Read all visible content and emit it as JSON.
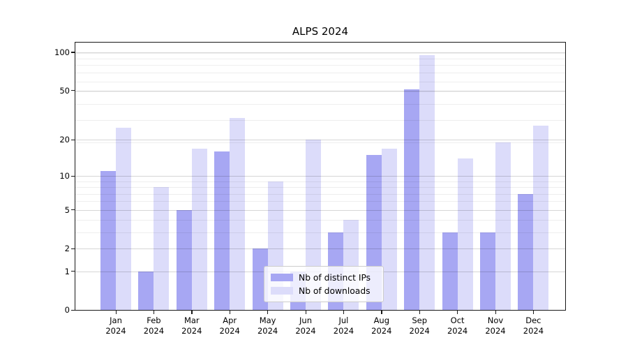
{
  "chart_data": {
    "type": "bar",
    "title": "ALPS 2024",
    "categories": [
      "Jan 2024",
      "Feb 2024",
      "Mar 2024",
      "Apr 2024",
      "May 2024",
      "Jun 2024",
      "Jul 2024",
      "Aug 2024",
      "Sep 2024",
      "Oct 2024",
      "Nov 2024",
      "Dec 2024"
    ],
    "series": [
      {
        "name": "Nb of distinct IPs",
        "color": "#a7a7f3",
        "values": [
          11,
          1,
          5,
          16,
          2,
          1,
          3,
          15,
          51,
          3,
          3,
          7
        ]
      },
      {
        "name": "Nb of downloads",
        "color": "#dcdcfa",
        "values": [
          25,
          8,
          17,
          30,
          9,
          20,
          4,
          17,
          95,
          14,
          19,
          26
        ]
      }
    ],
    "y_axis": {
      "scale": "log1p",
      "ticks": [
        0,
        1,
        2,
        5,
        10,
        20,
        50,
        100
      ],
      "minor_grid_u": [
        4,
        5,
        7,
        8,
        9,
        10,
        20,
        30,
        40,
        50,
        60,
        70,
        80,
        90,
        100
      ],
      "ylim": [
        0,
        119
      ]
    },
    "grid": "on",
    "legend_position": "lower center"
  }
}
